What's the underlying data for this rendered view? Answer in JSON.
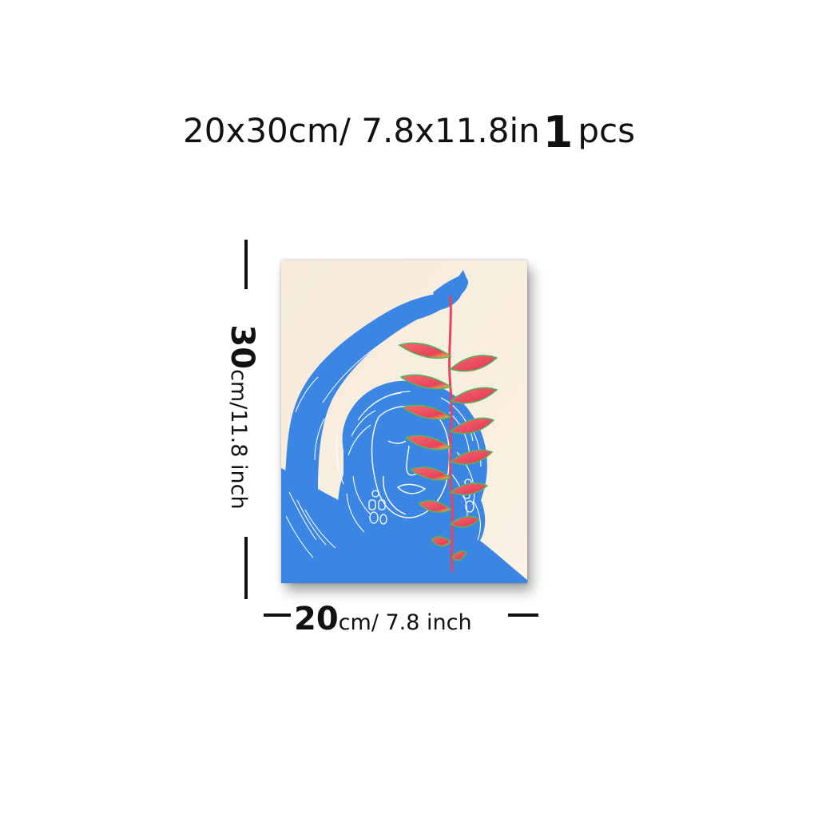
{
  "title": {
    "size_text": "20x30cm/ 7.8x11.8in",
    "quantity": "1",
    "quantity_unit": "pcs"
  },
  "dimensions": {
    "height_value": "30",
    "height_unit": "cm/11.8 inch",
    "width_value": "20",
    "width_unit": "cm/ 7.8 inch"
  },
  "artwork": {
    "subject": "blue woman holding heliconia flower",
    "colors": {
      "background": "#f7ecdc",
      "figure": "#3b86e2",
      "line": "#ffffff",
      "flower": "#e8435a",
      "leaf": "#4fb85a"
    }
  }
}
